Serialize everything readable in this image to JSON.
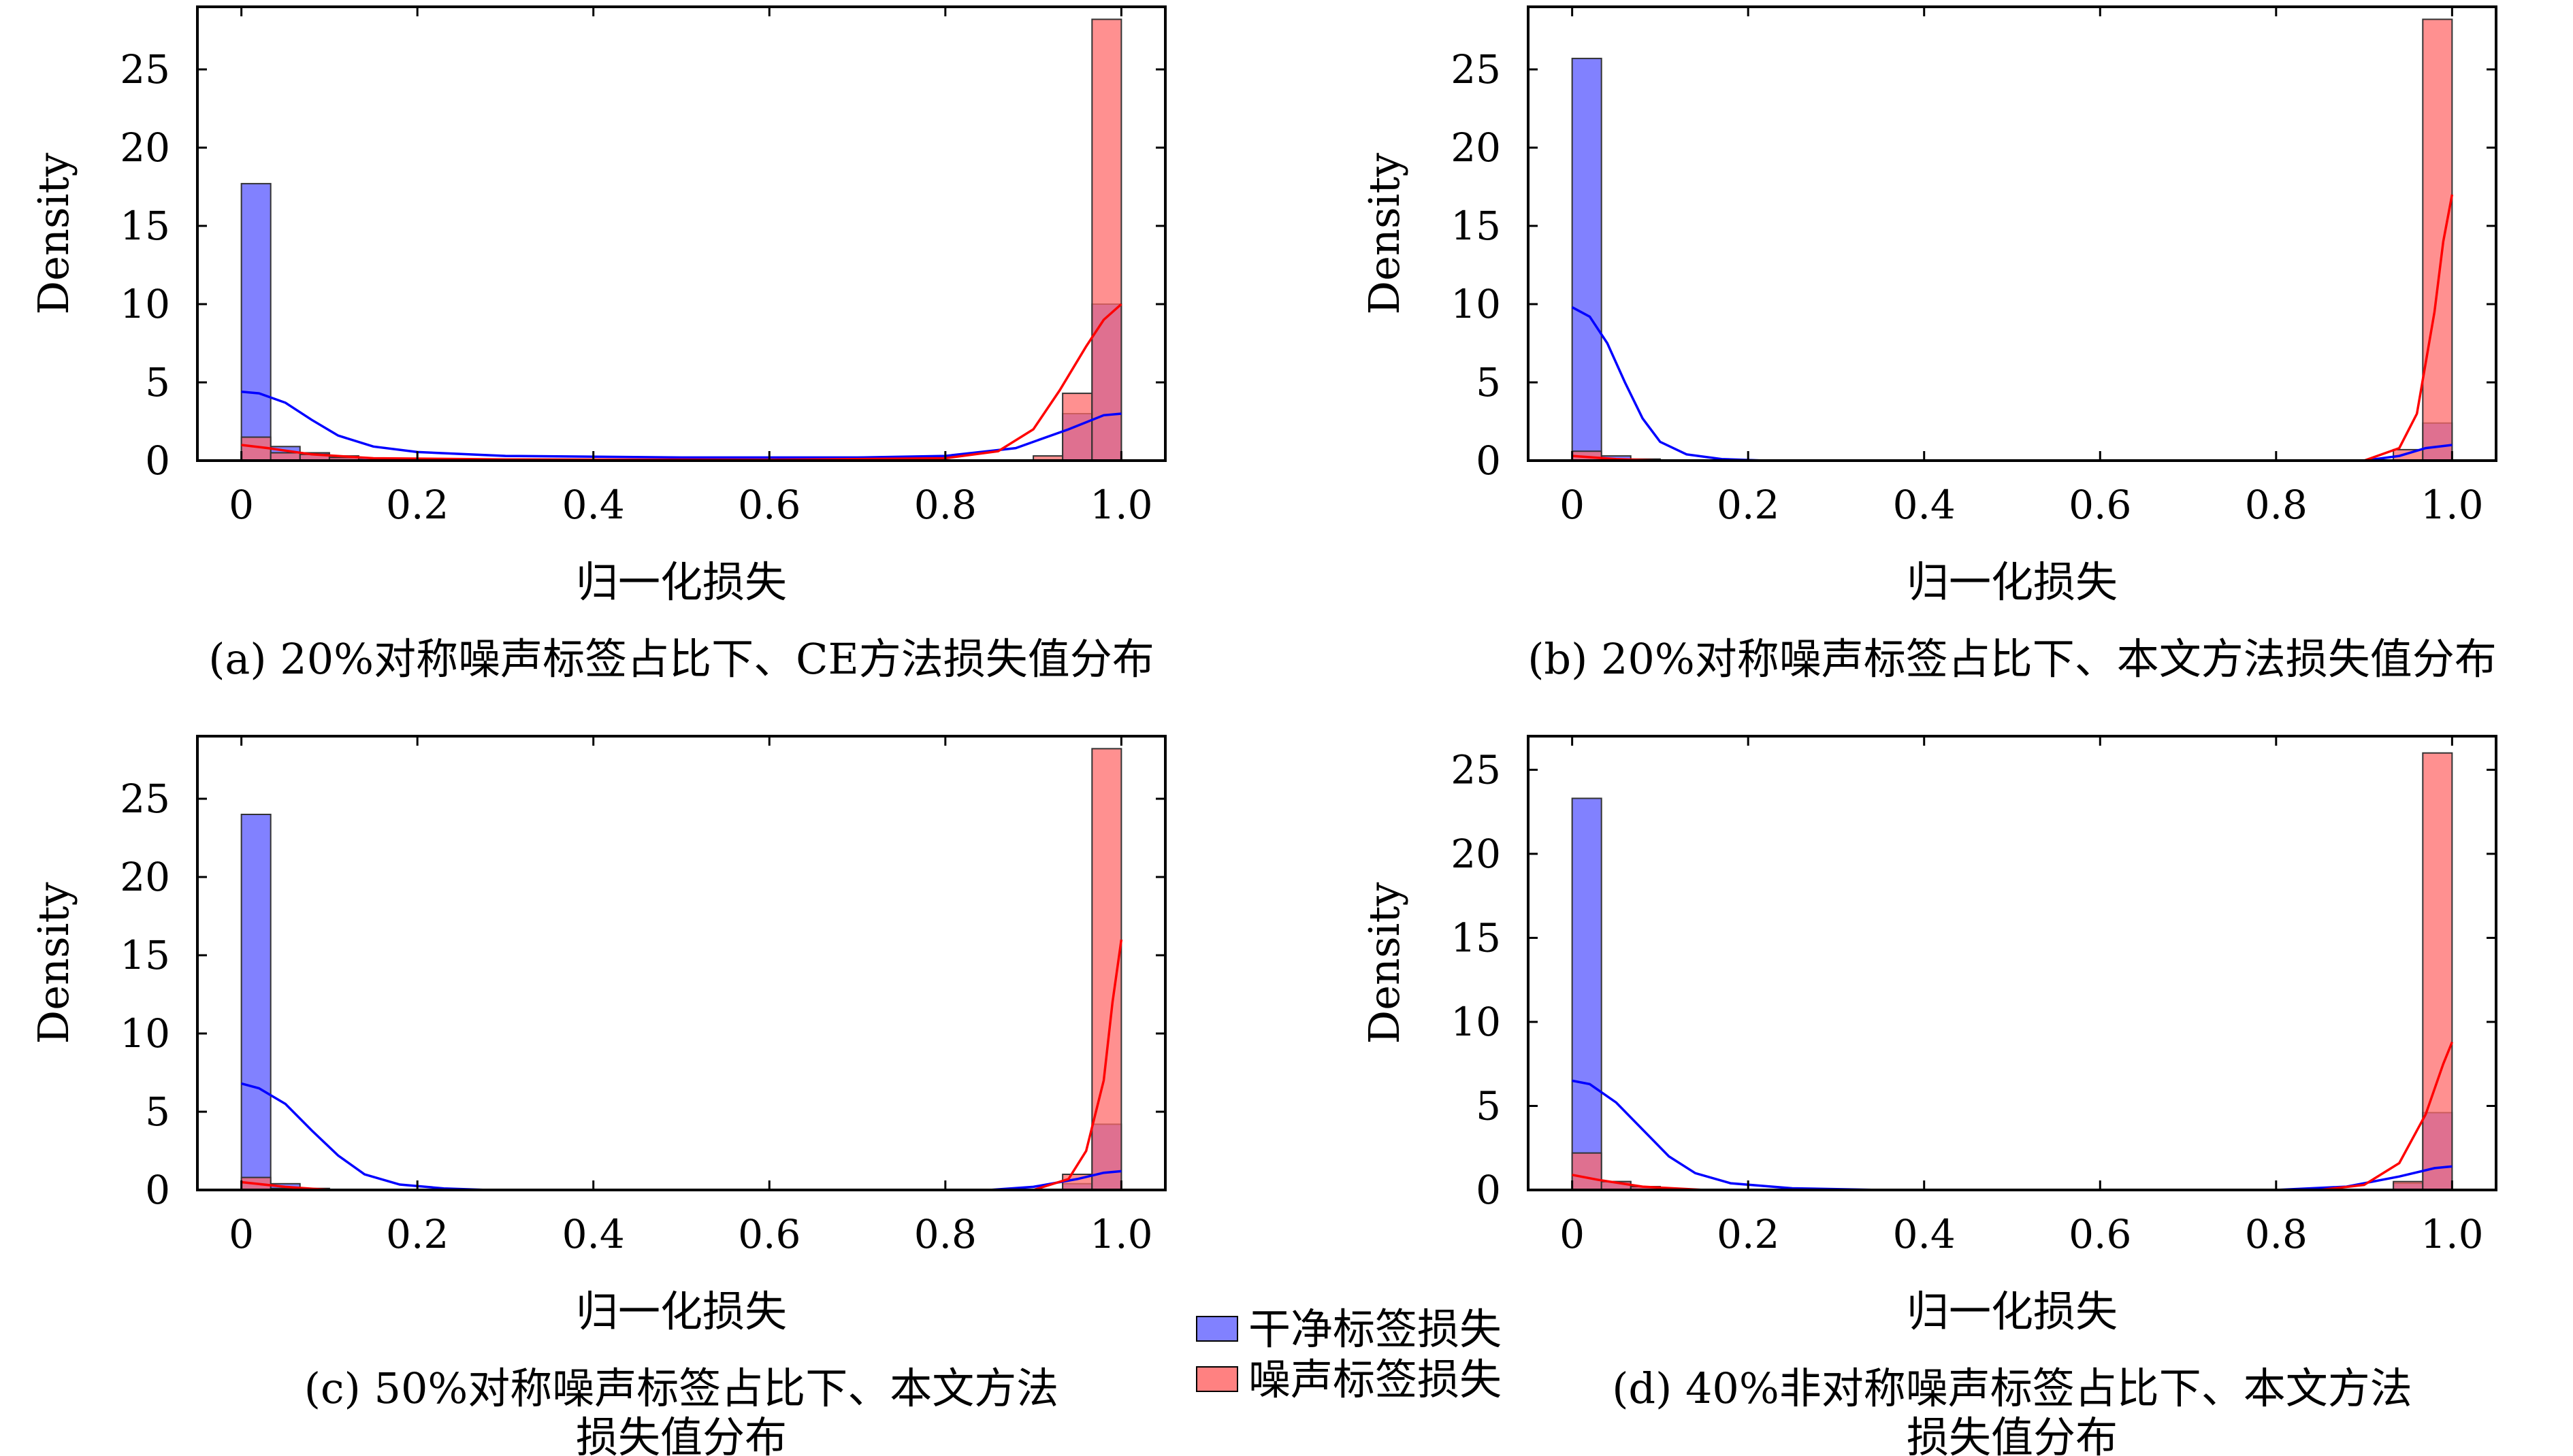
{
  "legend": {
    "clean_label": "干净标签损失",
    "noisy_label": "噪声标签损失",
    "clean_color": "#6b6bff",
    "noisy_color": "#ff6b6b",
    "clean_line_color": "#0000ff",
    "noisy_line_color": "#ff0000"
  },
  "chart_data": [
    {
      "type": "bar",
      "caption": [
        "(a) 20%对称噪声标签占比下、CE方法损失值分布"
      ],
      "xlabel": "归一化损失",
      "ylabel": "Density",
      "xlim": [
        -0.05,
        1.05
      ],
      "ylim": [
        0,
        29
      ],
      "xticks": [
        "0",
        "0.2",
        "0.4",
        "0.6",
        "0.8",
        "1.0"
      ],
      "yticks": [
        "0",
        "5",
        "10",
        "15",
        "20",
        "25"
      ],
      "bin_width": 0.0333,
      "series": [
        {
          "name": "干净标签损失",
          "bars": [
            [
              0.0,
              17.7
            ],
            [
              0.0333,
              0.9
            ],
            [
              0.0667,
              0.5
            ],
            [
              0.1,
              0.3
            ],
            [
              0.1333,
              0.15
            ],
            [
              0.9333,
              3.0
            ],
            [
              0.9667,
              10.0
            ]
          ],
          "kde": [
            [
              0,
              4.4
            ],
            [
              0.02,
              4.3
            ],
            [
              0.05,
              3.7
            ],
            [
              0.08,
              2.6
            ],
            [
              0.11,
              1.6
            ],
            [
              0.15,
              0.9
            ],
            [
              0.2,
              0.55
            ],
            [
              0.3,
              0.3
            ],
            [
              0.5,
              0.2
            ],
            [
              0.7,
              0.2
            ],
            [
              0.8,
              0.3
            ],
            [
              0.88,
              0.8
            ],
            [
              0.94,
              2.0
            ],
            [
              0.98,
              2.9
            ],
            [
              1.0,
              3.0
            ]
          ]
        },
        {
          "name": "噪声标签损失",
          "bars": [
            [
              0.0,
              1.5
            ],
            [
              0.0333,
              0.5
            ],
            [
              0.0667,
              0.4
            ],
            [
              0.1,
              0.2
            ],
            [
              0.9,
              0.3
            ],
            [
              0.9333,
              4.3
            ],
            [
              0.9667,
              28.2
            ]
          ],
          "kde": [
            [
              0,
              1.0
            ],
            [
              0.03,
              0.8
            ],
            [
              0.08,
              0.4
            ],
            [
              0.15,
              0.15
            ],
            [
              0.3,
              0.08
            ],
            [
              0.6,
              0.05
            ],
            [
              0.8,
              0.15
            ],
            [
              0.86,
              0.6
            ],
            [
              0.9,
              2.0
            ],
            [
              0.93,
              4.5
            ],
            [
              0.96,
              7.3
            ],
            [
              0.98,
              9.0
            ],
            [
              1.0,
              10.0
            ]
          ]
        }
      ]
    },
    {
      "type": "bar",
      "caption": [
        "(b) 20%对称噪声标签占比下、本文方法损失值分布"
      ],
      "xlabel": "归一化损失",
      "ylabel": "Density",
      "xlim": [
        -0.05,
        1.05
      ],
      "ylim": [
        0,
        29
      ],
      "xticks": [
        "0",
        "0.2",
        "0.4",
        "0.6",
        "0.8",
        "1.0"
      ],
      "yticks": [
        "0",
        "5",
        "10",
        "15",
        "20",
        "25"
      ],
      "bin_width": 0.0333,
      "series": [
        {
          "name": "干净标签损失",
          "bars": [
            [
              0.0,
              25.7
            ],
            [
              0.0333,
              0.3
            ],
            [
              0.0667,
              0.1
            ],
            [
              0.9667,
              2.4
            ]
          ],
          "kde": [
            [
              0,
              9.8
            ],
            [
              0.02,
              9.2
            ],
            [
              0.04,
              7.5
            ],
            [
              0.06,
              5.0
            ],
            [
              0.08,
              2.7
            ],
            [
              0.1,
              1.2
            ],
            [
              0.13,
              0.4
            ],
            [
              0.17,
              0.1
            ],
            [
              0.22,
              0.0
            ],
            [
              0.9,
              0.0
            ],
            [
              0.94,
              0.3
            ],
            [
              0.97,
              0.8
            ],
            [
              1.0,
              1.0
            ]
          ]
        },
        {
          "name": "噪声标签损失",
          "bars": [
            [
              0.0,
              0.6
            ],
            [
              0.9333,
              0.7
            ],
            [
              0.9667,
              28.2
            ]
          ],
          "kde": [
            [
              0,
              0.3
            ],
            [
              0.05,
              0.1
            ],
            [
              0.1,
              0.0
            ],
            [
              0.9,
              0.0
            ],
            [
              0.94,
              0.8
            ],
            [
              0.96,
              3.0
            ],
            [
              0.98,
              9.5
            ],
            [
              0.99,
              14.0
            ],
            [
              1.0,
              17.0
            ]
          ]
        }
      ]
    },
    {
      "type": "bar",
      "caption": [
        "(c) 50%对称噪声标签占比下、本文方法",
        "损失值分布"
      ],
      "xlabel": "归一化损失",
      "ylabel": "Density",
      "xlim": [
        -0.05,
        1.05
      ],
      "ylim": [
        0,
        29
      ],
      "xticks": [
        "0",
        "0.2",
        "0.4",
        "0.6",
        "0.8",
        "1.0"
      ],
      "yticks": [
        "0",
        "5",
        "10",
        "15",
        "20",
        "25"
      ],
      "bin_width": 0.0333,
      "series": [
        {
          "name": "干净标签损失",
          "bars": [
            [
              0.0,
              24.0
            ],
            [
              0.0333,
              0.4
            ],
            [
              0.0667,
              0.1
            ],
            [
              0.9333,
              0.4
            ],
            [
              0.9667,
              4.2
            ]
          ],
          "kde": [
            [
              0,
              6.8
            ],
            [
              0.02,
              6.5
            ],
            [
              0.05,
              5.5
            ],
            [
              0.08,
              3.8
            ],
            [
              0.11,
              2.2
            ],
            [
              0.14,
              1.0
            ],
            [
              0.18,
              0.35
            ],
            [
              0.23,
              0.1
            ],
            [
              0.28,
              0.0
            ],
            [
              0.85,
              0.0
            ],
            [
              0.9,
              0.2
            ],
            [
              0.95,
              0.7
            ],
            [
              0.98,
              1.1
            ],
            [
              1.0,
              1.2
            ]
          ]
        },
        {
          "name": "噪声标签损失",
          "bars": [
            [
              0.0,
              0.8
            ],
            [
              0.0333,
              0.1
            ],
            [
              0.9333,
              1.0
            ],
            [
              0.9667,
              28.2
            ]
          ],
          "kde": [
            [
              0,
              0.5
            ],
            [
              0.05,
              0.2
            ],
            [
              0.1,
              0.0
            ],
            [
              0.9,
              0.0
            ],
            [
              0.94,
              0.7
            ],
            [
              0.96,
              2.5
            ],
            [
              0.98,
              7.0
            ],
            [
              0.99,
              12.0
            ],
            [
              1.0,
              16.0
            ]
          ]
        }
      ]
    },
    {
      "type": "bar",
      "caption": [
        "(d) 40%非对称噪声标签占比下、本文方法",
        "损失值分布"
      ],
      "xlabel": "归一化损失",
      "ylabel": "Density",
      "xlim": [
        -0.05,
        1.05
      ],
      "ylim": [
        0,
        27
      ],
      "xticks": [
        "0",
        "0.2",
        "0.4",
        "0.6",
        "0.8",
        "1.0"
      ],
      "yticks": [
        "0",
        "5",
        "10",
        "15",
        "20",
        "25"
      ],
      "bin_width": 0.0333,
      "series": [
        {
          "name": "干净标签损失",
          "bars": [
            [
              0.0,
              23.3
            ],
            [
              0.0333,
              0.5
            ],
            [
              0.0667,
              0.2
            ],
            [
              0.1,
              0.05
            ],
            [
              0.9333,
              0.4
            ],
            [
              0.9667,
              4.6
            ]
          ],
          "kde": [
            [
              0,
              6.5
            ],
            [
              0.02,
              6.3
            ],
            [
              0.05,
              5.2
            ],
            [
              0.08,
              3.6
            ],
            [
              0.11,
              2.0
            ],
            [
              0.14,
              1.0
            ],
            [
              0.18,
              0.4
            ],
            [
              0.25,
              0.1
            ],
            [
              0.35,
              0.0
            ],
            [
              0.8,
              0.0
            ],
            [
              0.88,
              0.2
            ],
            [
              0.94,
              0.8
            ],
            [
              0.98,
              1.3
            ],
            [
              1.0,
              1.4
            ]
          ]
        },
        {
          "name": "噪声标签损失",
          "bars": [
            [
              0.0,
              2.2
            ],
            [
              0.0333,
              0.5
            ],
            [
              0.0667,
              0.2
            ],
            [
              0.9333,
              0.5
            ],
            [
              0.9667,
              26.0
            ]
          ],
          "kde": [
            [
              0,
              0.9
            ],
            [
              0.03,
              0.6
            ],
            [
              0.08,
              0.2
            ],
            [
              0.15,
              0.0
            ],
            [
              0.85,
              0.0
            ],
            [
              0.9,
              0.3
            ],
            [
              0.94,
              1.6
            ],
            [
              0.97,
              4.5
            ],
            [
              0.99,
              7.5
            ],
            [
              1.0,
              8.8
            ]
          ]
        }
      ]
    }
  ]
}
